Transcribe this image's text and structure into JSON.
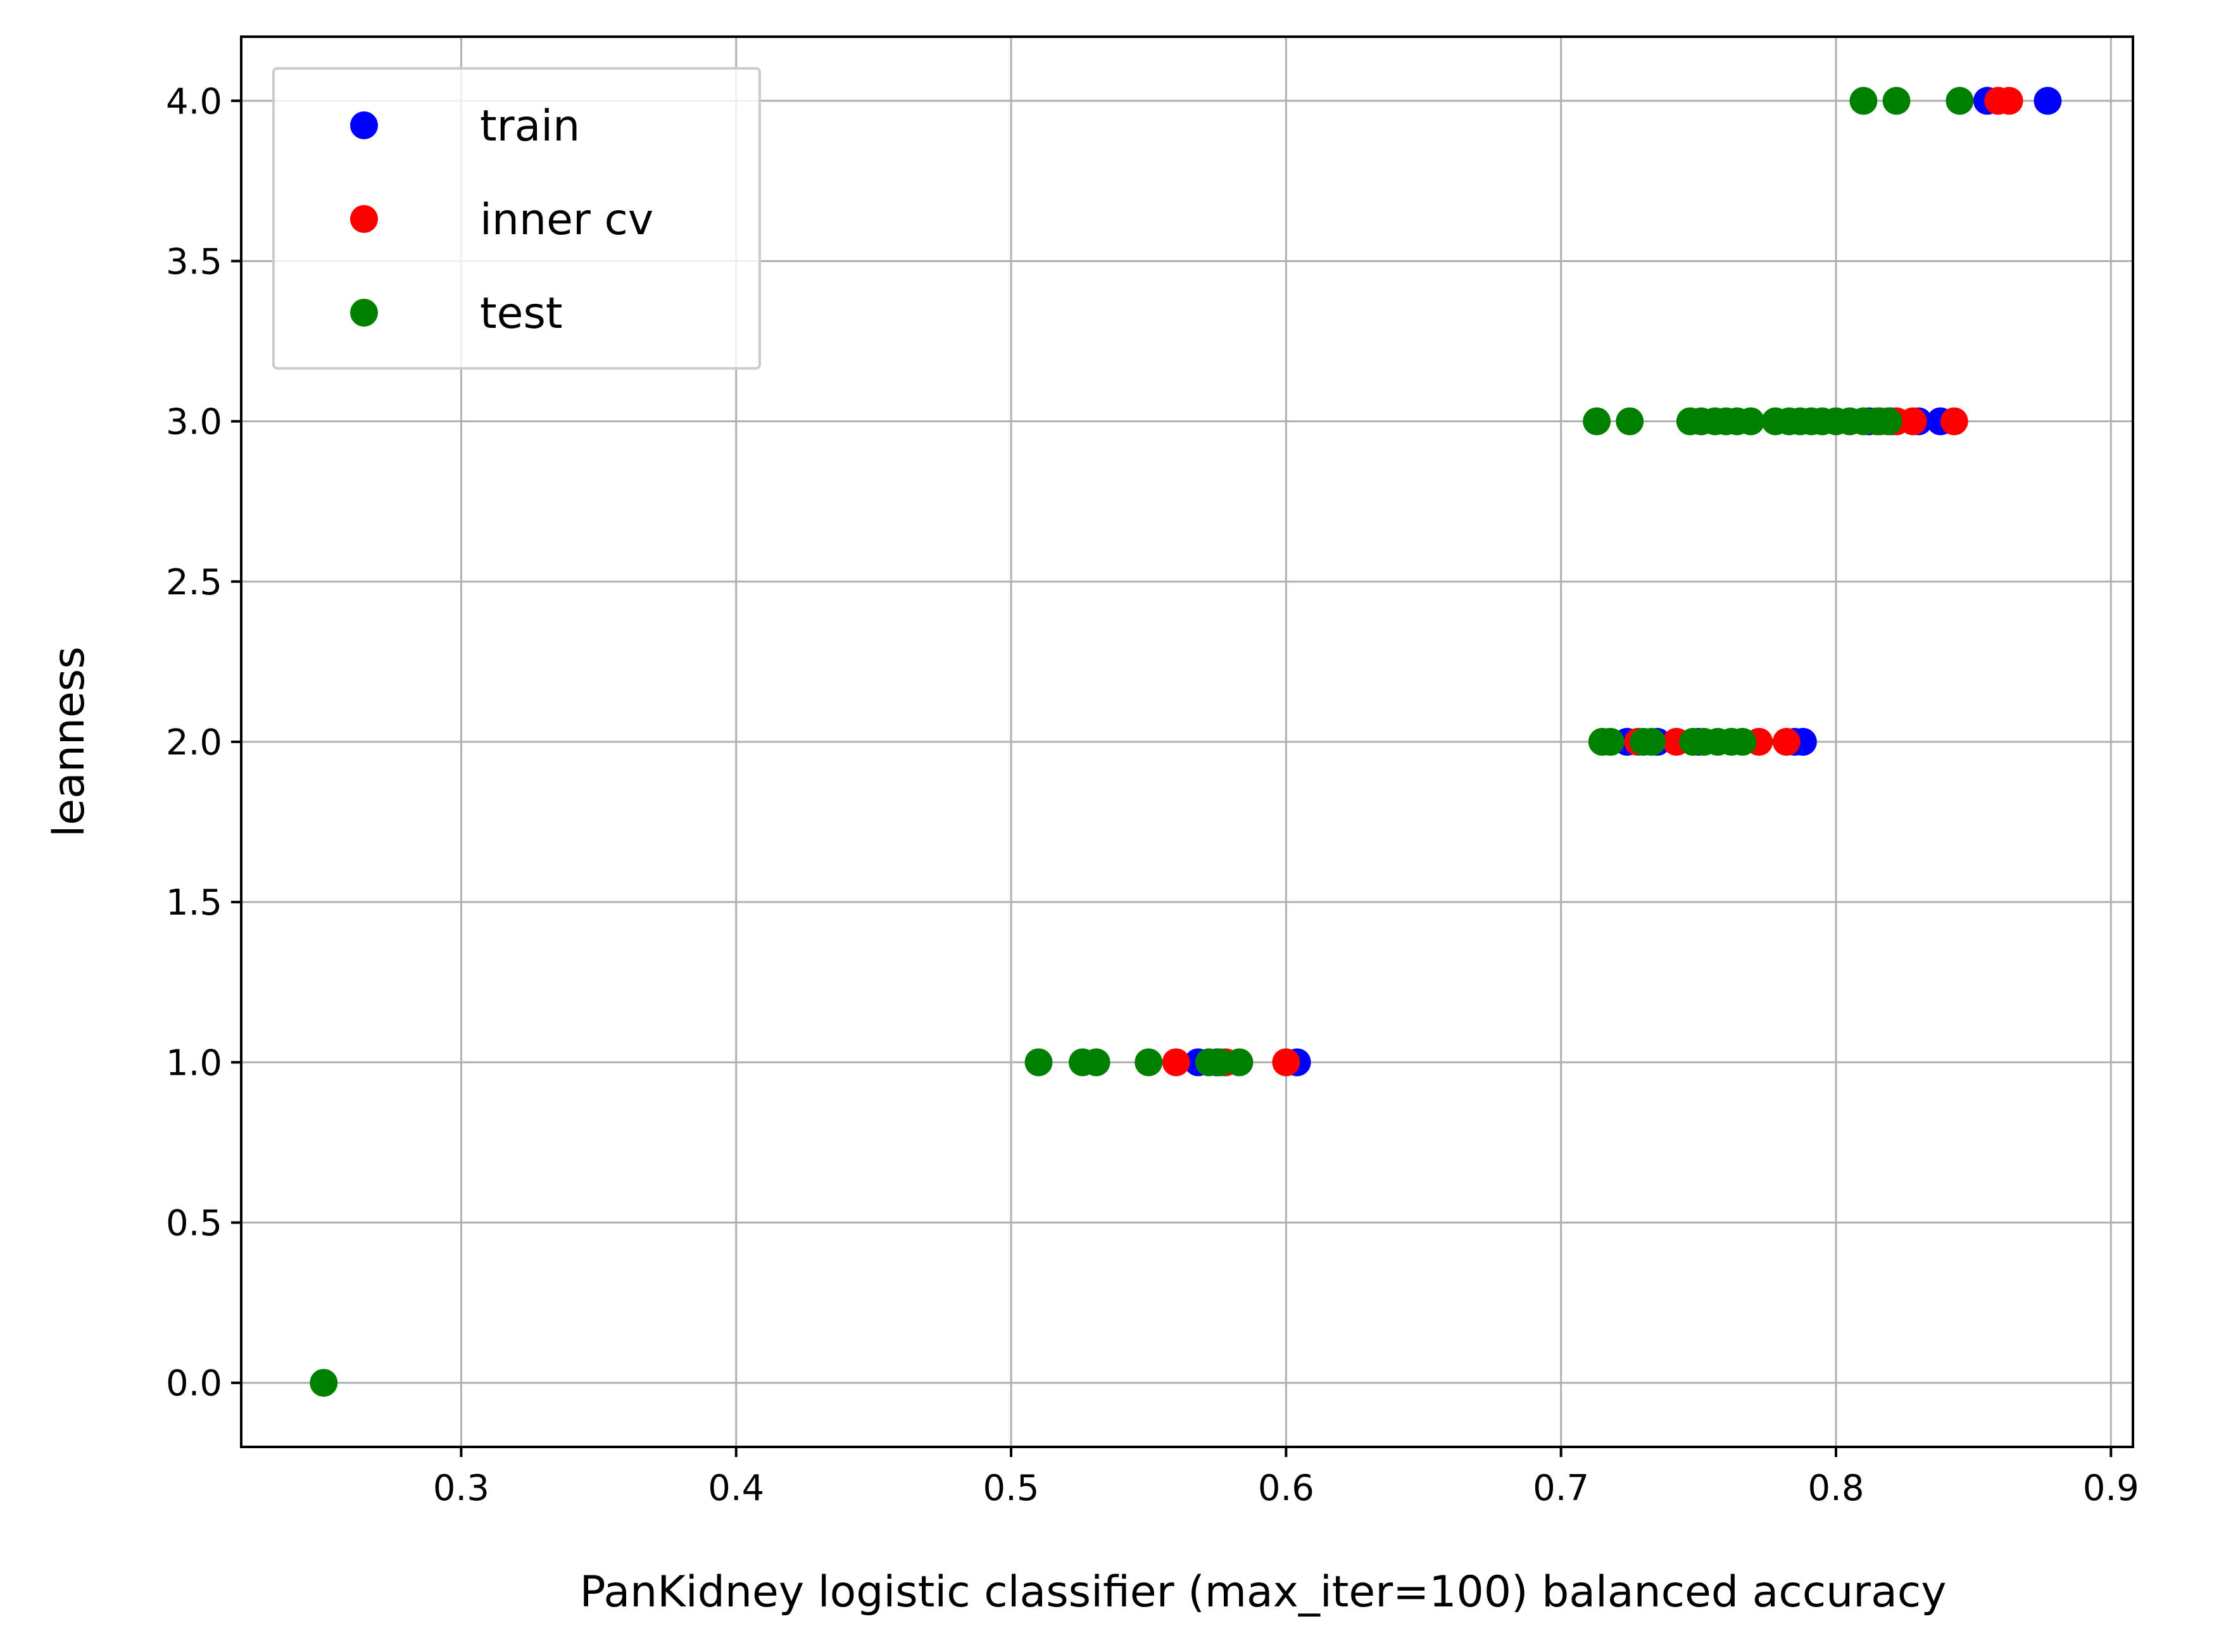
{
  "chart_data": {
    "type": "scatter",
    "title": "",
    "xlabel": "PanKidney logistic classifier (max_iter=100) balanced accuracy",
    "ylabel": "leanness",
    "xlim": [
      0.22,
      0.908
    ],
    "ylim": [
      -0.2,
      4.2
    ],
    "x_ticks": [
      "0.3",
      "0.4",
      "0.5",
      "0.6",
      "0.7",
      "0.8",
      "0.9"
    ],
    "y_ticks": [
      "0.0",
      "0.5",
      "1.0",
      "1.5",
      "2.0",
      "2.5",
      "3.0",
      "3.5",
      "4.0"
    ],
    "grid": true,
    "legend_position": "top-left",
    "series": [
      {
        "name": "train",
        "color": "#0000ff",
        "points": [
          [
            0.604,
            1.0
          ],
          [
            0.575,
            1.0
          ],
          [
            0.568,
            1.0
          ],
          [
            0.788,
            2.0
          ],
          [
            0.785,
            2.0
          ],
          [
            0.724,
            2.0
          ],
          [
            0.75,
            2.0
          ],
          [
            0.735,
            2.0
          ],
          [
            0.838,
            3.0
          ],
          [
            0.83,
            3.0
          ],
          [
            0.82,
            3.0
          ],
          [
            0.812,
            3.0
          ],
          [
            0.877,
            4.0
          ],
          [
            0.855,
            4.0
          ]
        ]
      },
      {
        "name": "inner cv",
        "color": "#ff0000",
        "points": [
          [
            0.56,
            1.0
          ],
          [
            0.6,
            1.0
          ],
          [
            0.578,
            1.0
          ],
          [
            0.782,
            2.0
          ],
          [
            0.772,
            2.0
          ],
          [
            0.742,
            2.0
          ],
          [
            0.728,
            2.0
          ],
          [
            0.843,
            3.0
          ],
          [
            0.828,
            3.0
          ],
          [
            0.822,
            3.0
          ],
          [
            0.816,
            3.0
          ],
          [
            0.863,
            4.0
          ],
          [
            0.859,
            4.0
          ]
        ]
      },
      {
        "name": "test",
        "color": "#008000",
        "points": [
          [
            0.25,
            0.0
          ],
          [
            0.51,
            1.0
          ],
          [
            0.526,
            1.0
          ],
          [
            0.531,
            1.0
          ],
          [
            0.55,
            1.0
          ],
          [
            0.572,
            1.0
          ],
          [
            0.576,
            1.0
          ],
          [
            0.583,
            1.0
          ],
          [
            0.715,
            2.0
          ],
          [
            0.718,
            2.0
          ],
          [
            0.73,
            2.0
          ],
          [
            0.733,
            2.0
          ],
          [
            0.748,
            2.0
          ],
          [
            0.752,
            2.0
          ],
          [
            0.757,
            2.0
          ],
          [
            0.762,
            2.0
          ],
          [
            0.766,
            2.0
          ],
          [
            0.713,
            3.0
          ],
          [
            0.725,
            3.0
          ],
          [
            0.747,
            3.0
          ],
          [
            0.751,
            3.0
          ],
          [
            0.756,
            3.0
          ],
          [
            0.76,
            3.0
          ],
          [
            0.764,
            3.0
          ],
          [
            0.769,
            3.0
          ],
          [
            0.778,
            3.0
          ],
          [
            0.783,
            3.0
          ],
          [
            0.787,
            3.0
          ],
          [
            0.791,
            3.0
          ],
          [
            0.795,
            3.0
          ],
          [
            0.8,
            3.0
          ],
          [
            0.805,
            3.0
          ],
          [
            0.81,
            3.0
          ],
          [
            0.815,
            3.0
          ],
          [
            0.819,
            3.0
          ],
          [
            0.81,
            4.0
          ],
          [
            0.822,
            4.0
          ],
          [
            0.845,
            4.0
          ]
        ]
      }
    ]
  }
}
